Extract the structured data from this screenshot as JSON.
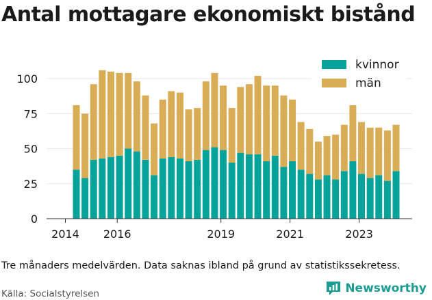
{
  "header": {
    "title": "Antal mottagare ekonomiskt bistånd"
  },
  "footer": {
    "note": "Tre månaders medelvärden. Data saknas ibland på grund av statistikssekretess.",
    "source": "Källa: Socialstyrelsen",
    "brand": "Newsworthy"
  },
  "colors": {
    "kvinnor": "#06a39a",
    "man": "#d9ad56",
    "brand": "#1a9c93"
  },
  "chart_data": {
    "type": "bar",
    "stacked": true,
    "title": "Antal mottagare ekonomiskt bistånd",
    "xlabel": "",
    "ylabel": "",
    "ylim": [
      0,
      110
    ],
    "yticks": [
      0,
      25,
      50,
      75,
      100
    ],
    "xtick_labels": [
      "2014",
      "2016",
      "2019",
      "2021",
      "2023"
    ],
    "grid": true,
    "legend_position": "top-right",
    "categories": [
      "2014Q2",
      "2014Q3",
      "2014Q4",
      "2015Q1",
      "2015Q2",
      "2015Q3",
      "2015Q4",
      "2016Q1",
      "2016Q2",
      "2016Q3",
      "2016Q4",
      "2017Q1",
      "2017Q2",
      "2017Q3",
      "2017Q4",
      "2018Q1",
      "2018Q2",
      "2018Q3",
      "2018Q4",
      "2019Q1",
      "2019Q2",
      "2019Q3",
      "2019Q4",
      "2020Q1",
      "2020Q2",
      "2020Q3",
      "2020Q4",
      "2021Q1",
      "2021Q2",
      "2021Q3",
      "2021Q4",
      "2022Q1",
      "2022Q2",
      "2022Q3",
      "2022Q4",
      "2023Q1",
      "2023Q2",
      "2023Q3"
    ],
    "series": [
      {
        "name": "kvinnor",
        "values": [
          35,
          29,
          42,
          43,
          44,
          45,
          50,
          48,
          42,
          31,
          43,
          44,
          43,
          41,
          42,
          49,
          51,
          49,
          40,
          47,
          46,
          46,
          41,
          45,
          37,
          41,
          35,
          32,
          28,
          31,
          28,
          34,
          41,
          32,
          29,
          31,
          27,
          34
        ]
      },
      {
        "name": "män",
        "values": [
          46,
          46,
          54,
          63,
          61,
          59,
          54,
          50,
          46,
          37,
          42,
          47,
          47,
          37,
          37,
          49,
          53,
          46,
          39,
          47,
          50,
          56,
          54,
          50,
          51,
          44,
          34,
          32,
          27,
          28,
          32,
          33,
          40,
          37,
          36,
          34,
          36,
          33
        ]
      }
    ]
  }
}
